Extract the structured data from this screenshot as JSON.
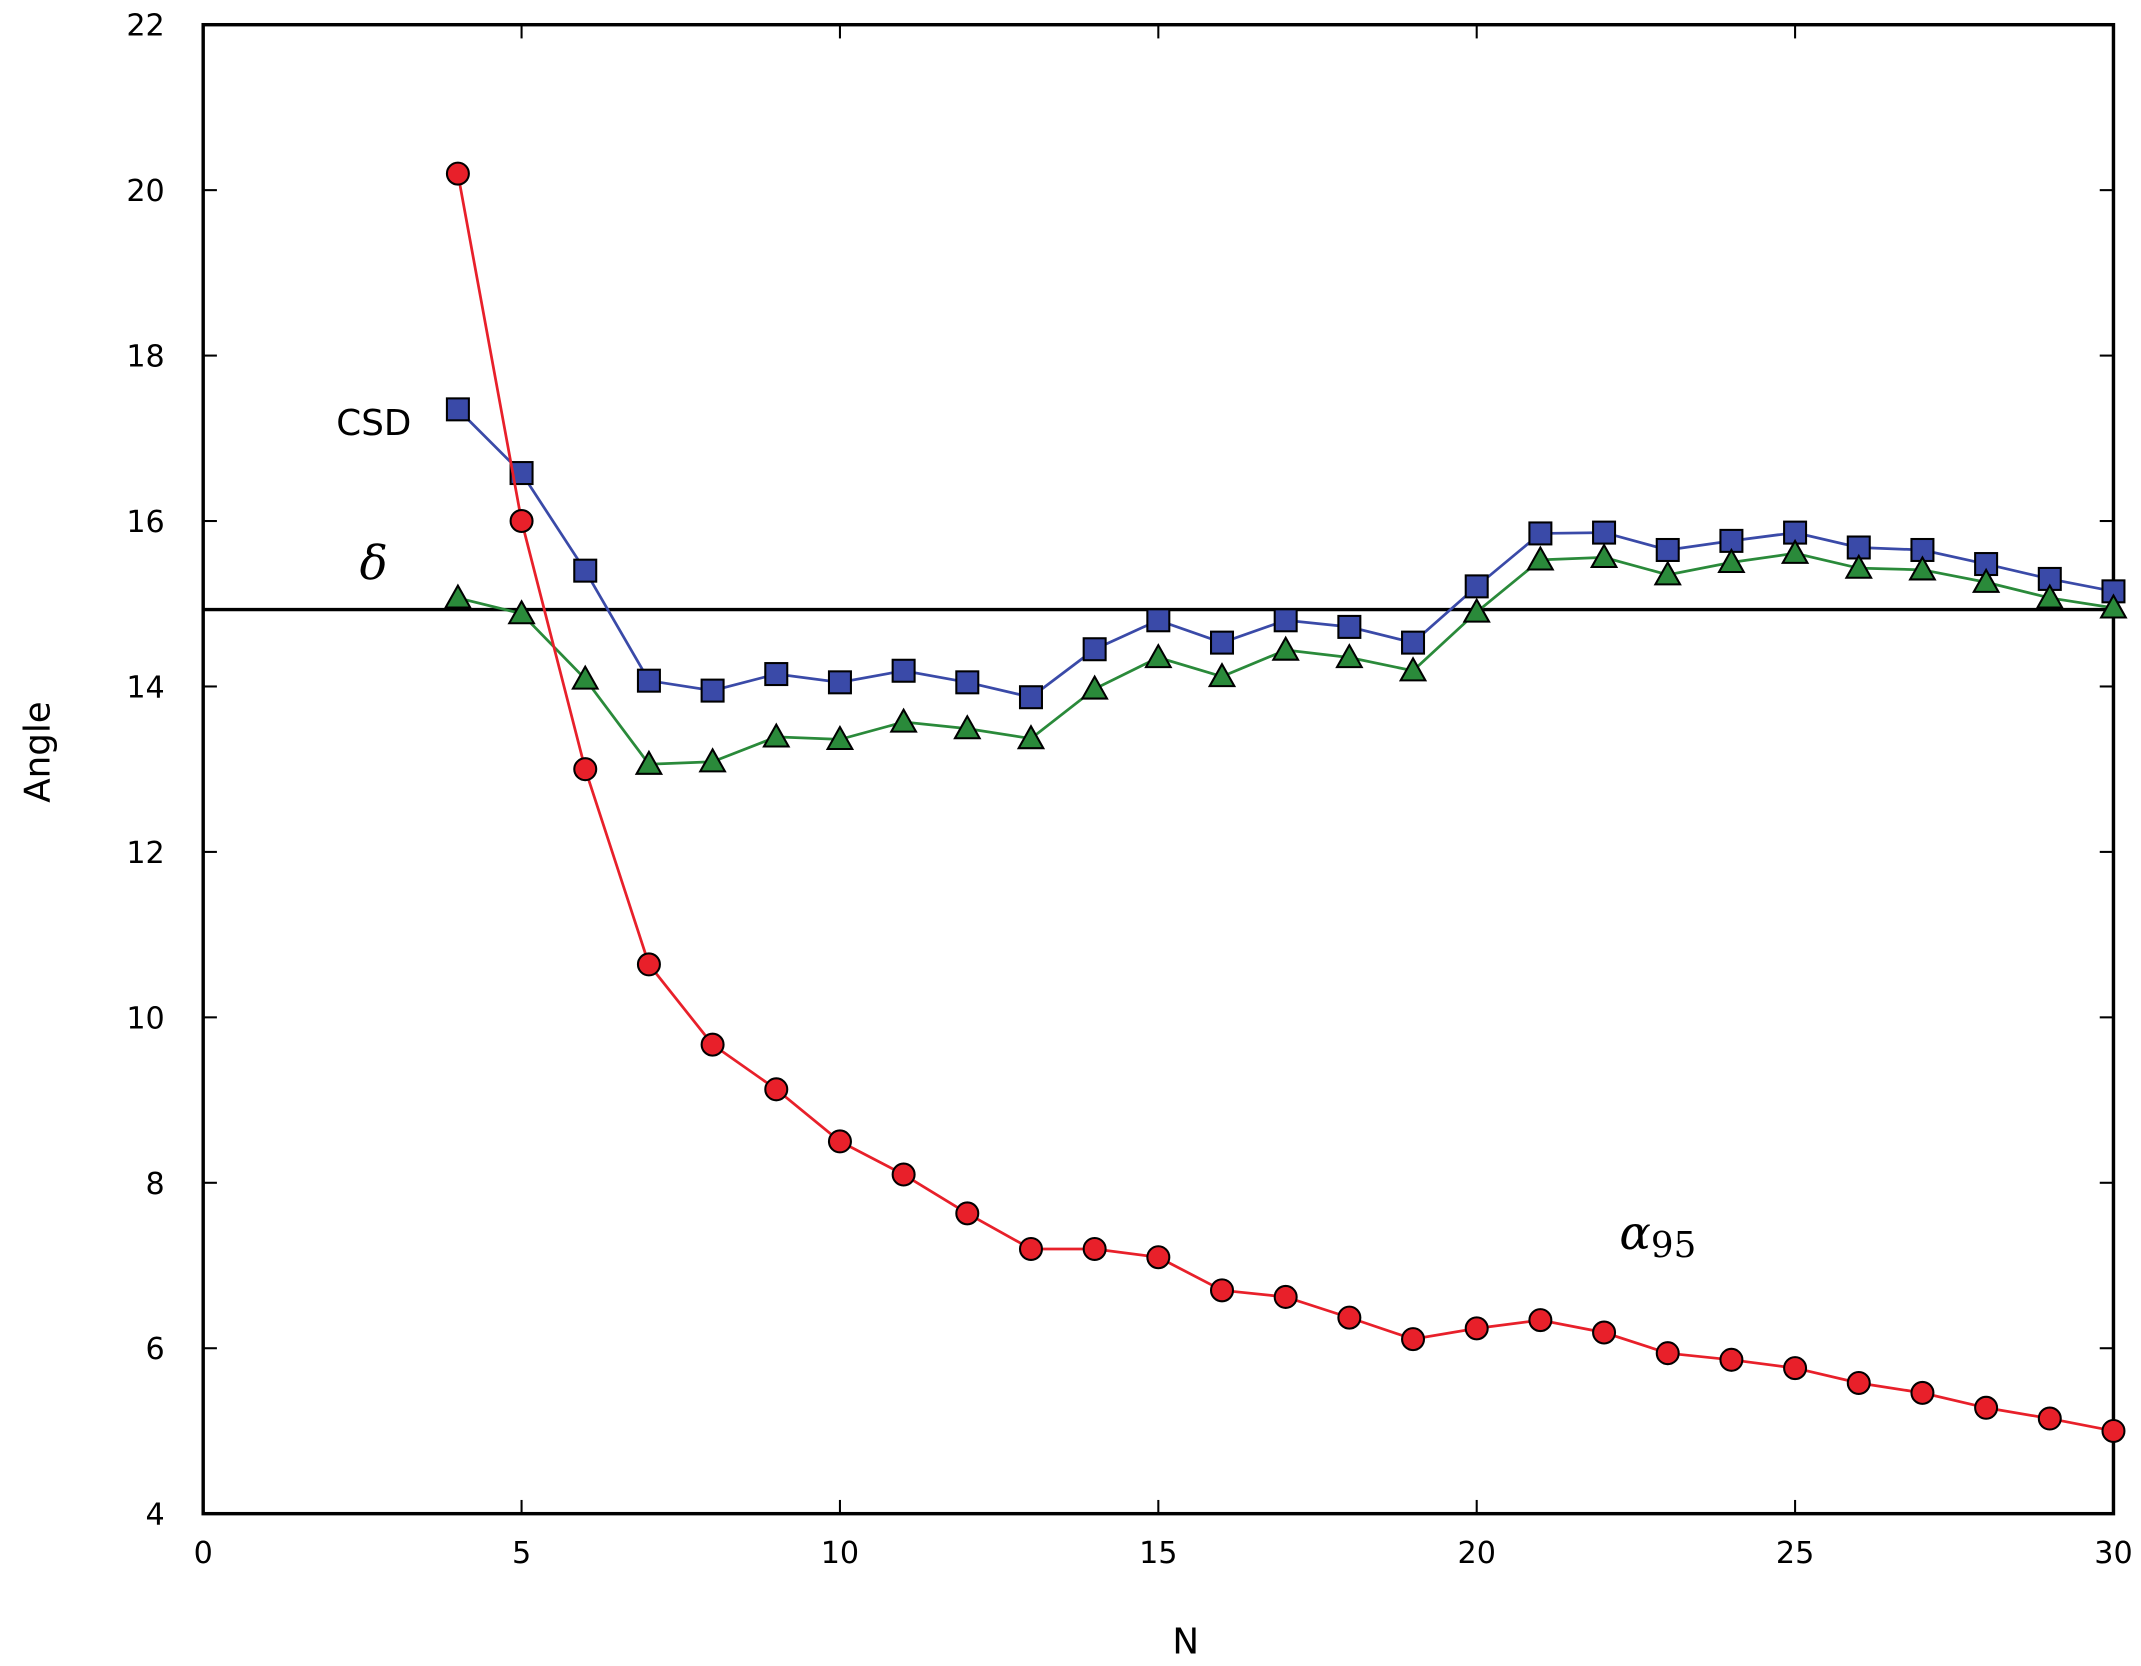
{
  "chart_data": {
    "type": "line",
    "xlabel": "N",
    "ylabel": "Angle",
    "xlim": [
      0,
      30
    ],
    "ylim": [
      4,
      22
    ],
    "xticks": [
      0,
      5,
      10,
      15,
      20,
      25,
      30
    ],
    "yticks": [
      4,
      6,
      8,
      10,
      12,
      14,
      16,
      18,
      20,
      22
    ],
    "grid": false,
    "x": [
      4,
      5,
      6,
      7,
      8,
      9,
      10,
      11,
      12,
      13,
      14,
      15,
      16,
      17,
      18,
      19,
      20,
      21,
      22,
      23,
      24,
      25,
      26,
      27,
      28,
      29,
      30
    ],
    "series": [
      {
        "name": "CSD",
        "color": "#3a4aa8",
        "marker": "square",
        "values": [
          17.35,
          16.58,
          15.4,
          14.07,
          13.95,
          14.15,
          14.05,
          14.19,
          14.05,
          13.87,
          14.45,
          14.8,
          14.53,
          14.8,
          14.72,
          14.53,
          15.21,
          15.85,
          15.86,
          15.65,
          15.76,
          15.86,
          15.68,
          15.65,
          15.48,
          15.3,
          15.15
        ]
      },
      {
        "color": "#2a8a3a",
        "marker": "triangle",
        "values": [
          15.07,
          14.88,
          14.09,
          13.06,
          13.09,
          13.39,
          13.36,
          13.57,
          13.49,
          13.37,
          13.97,
          14.35,
          14.12,
          14.44,
          14.35,
          14.19,
          14.9,
          15.53,
          15.56,
          15.35,
          15.5,
          15.61,
          15.43,
          15.41,
          15.26,
          15.07,
          14.95
        ]
      },
      {
        "name": "α95",
        "color": "#e8202a",
        "marker": "circle",
        "values": [
          20.2,
          16.0,
          13.0,
          10.64,
          9.67,
          9.13,
          8.5,
          8.1,
          7.63,
          7.2,
          7.2,
          7.1,
          6.7,
          6.62,
          6.37,
          6.11,
          6.24,
          6.34,
          6.19,
          5.94,
          5.86,
          5.76,
          5.58,
          5.46,
          5.28,
          5.15,
          5.0
        ]
      }
    ],
    "hline": {
      "label": "δ",
      "value": 14.93,
      "color": "#000000"
    },
    "annotations": {
      "csd": "CSD",
      "delta": "δ",
      "alpha": "α",
      "alpha_sub": "95"
    }
  }
}
